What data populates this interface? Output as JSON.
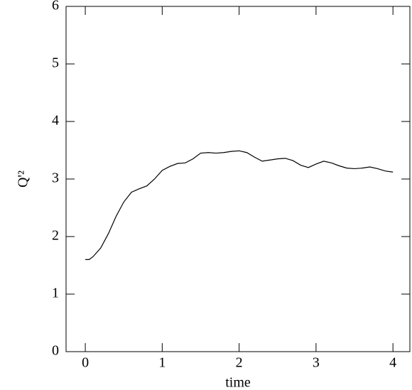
{
  "chart_data": {
    "type": "line",
    "xlabel": "time",
    "ylabel": "Q'²",
    "x": [
      0,
      0.05,
      0.1,
      0.2,
      0.3,
      0.4,
      0.5,
      0.6,
      0.7,
      0.8,
      0.9,
      1.0,
      1.1,
      1.2,
      1.3,
      1.4,
      1.5,
      1.6,
      1.7,
      1.8,
      1.9,
      2.0,
      2.1,
      2.2,
      2.3,
      2.4,
      2.5,
      2.6,
      2.7,
      2.8,
      2.9,
      3.0,
      3.1,
      3.2,
      3.3,
      3.4,
      3.5,
      3.6,
      3.7,
      3.8,
      3.9,
      4.0
    ],
    "series": [
      {
        "color": "#000000",
        "values": [
          1.6,
          1.6,
          1.65,
          1.8,
          2.05,
          2.35,
          2.6,
          2.77,
          2.83,
          2.88,
          3.0,
          3.15,
          3.22,
          3.27,
          3.28,
          3.35,
          3.45,
          3.46,
          3.45,
          3.46,
          3.48,
          3.49,
          3.46,
          3.38,
          3.31,
          3.33,
          3.35,
          3.36,
          3.32,
          3.24,
          3.2,
          3.26,
          3.31,
          3.28,
          3.23,
          3.19,
          3.18,
          3.19,
          3.21,
          3.18,
          3.14,
          3.12
        ]
      }
    ],
    "xlim": [
      -0.25,
      4.22
    ],
    "ylim": [
      0,
      6
    ],
    "xticks": [
      0,
      1,
      2,
      3,
      4
    ],
    "yticks": [
      0,
      1,
      2,
      3,
      4,
      5,
      6
    ]
  }
}
